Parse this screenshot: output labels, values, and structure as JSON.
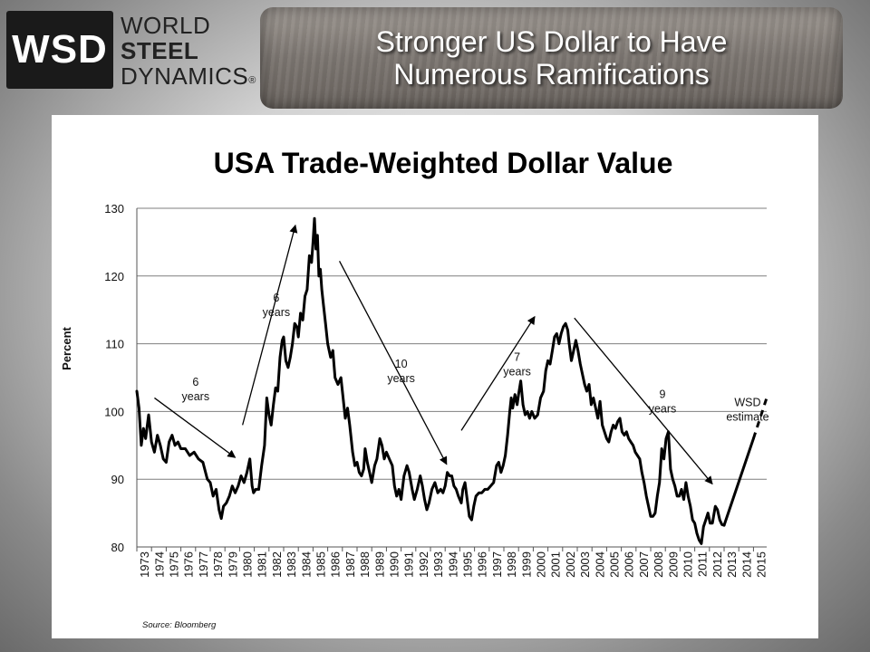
{
  "logo": {
    "abbr": "WSD",
    "line1": "WORLD",
    "line2": "STEEL",
    "line3": "DYNAMICS",
    "registered": "®"
  },
  "banner": {
    "line1": "Stronger US Dollar to Have",
    "line2": "Numerous Ramifications"
  },
  "chart_data": {
    "type": "line",
    "title": "USA Trade-Weighted Dollar Value",
    "ylabel": "Percent",
    "xlabel": "",
    "source": "Source:  Bloomberg",
    "ylim": [
      80,
      130
    ],
    "yticks": [
      80,
      90,
      100,
      110,
      120,
      130
    ],
    "xlim": [
      1973,
      2015.9
    ],
    "xticks": [
      "1973",
      "1974",
      "1975",
      "1976",
      "1977",
      "1978",
      "1979",
      "1980",
      "1981",
      "1982",
      "1983",
      "1984",
      "1985",
      "1986",
      "1987",
      "1988",
      "1989",
      "1990",
      "1991",
      "1992",
      "1993",
      "1994",
      "1995",
      "1996",
      "1997",
      "1998",
      "1999",
      "2000",
      "2001",
      "2002",
      "2003",
      "2004",
      "2005",
      "2006",
      "2007",
      "2008",
      "2009",
      "2010",
      "2011",
      "2012",
      "2013",
      "2014",
      "2015"
    ],
    "grid": "horizontal",
    "series": [
      {
        "values": [
          [
            1973.0,
            103.0
          ],
          [
            1973.15,
            100.5
          ],
          [
            1973.3,
            95.0
          ],
          [
            1973.45,
            97.5
          ],
          [
            1973.6,
            96.0
          ],
          [
            1973.8,
            99.5
          ],
          [
            1974.0,
            95.5
          ],
          [
            1974.2,
            94.0
          ],
          [
            1974.4,
            96.5
          ],
          [
            1974.6,
            95.0
          ],
          [
            1974.8,
            93.0
          ],
          [
            1975.0,
            92.5
          ],
          [
            1975.2,
            95.5
          ],
          [
            1975.4,
            96.5
          ],
          [
            1975.6,
            95.0
          ],
          [
            1975.8,
            95.5
          ],
          [
            1976.0,
            94.5
          ],
          [
            1976.3,
            94.5
          ],
          [
            1976.6,
            93.5
          ],
          [
            1976.9,
            94.0
          ],
          [
            1977.2,
            93.0
          ],
          [
            1977.5,
            92.5
          ],
          [
            1977.8,
            90.0
          ],
          [
            1978.0,
            89.5
          ],
          [
            1978.2,
            87.5
          ],
          [
            1978.4,
            88.5
          ],
          [
            1978.6,
            85.5
          ],
          [
            1978.75,
            84.2
          ],
          [
            1978.9,
            86.0
          ],
          [
            1979.1,
            86.5
          ],
          [
            1979.3,
            87.5
          ],
          [
            1979.5,
            89.0
          ],
          [
            1979.7,
            88.0
          ],
          [
            1979.9,
            89.0
          ],
          [
            1980.1,
            90.5
          ],
          [
            1980.3,
            89.5
          ],
          [
            1980.5,
            91.0
          ],
          [
            1980.7,
            93.0
          ],
          [
            1980.85,
            89.0
          ],
          [
            1980.95,
            88.0
          ],
          [
            1981.1,
            88.5
          ],
          [
            1981.3,
            88.5
          ],
          [
            1981.5,
            92.0
          ],
          [
            1981.7,
            95.0
          ],
          [
            1981.85,
            102.0
          ],
          [
            1982.0,
            99.5
          ],
          [
            1982.15,
            98.0
          ],
          [
            1982.3,
            101.0
          ],
          [
            1982.45,
            103.5
          ],
          [
            1982.6,
            103.0
          ],
          [
            1982.75,
            108.0
          ],
          [
            1982.9,
            110.5
          ],
          [
            1983.0,
            111.0
          ],
          [
            1983.15,
            107.5
          ],
          [
            1983.3,
            106.5
          ],
          [
            1983.45,
            108.0
          ],
          [
            1983.6,
            110.0
          ],
          [
            1983.75,
            113.0
          ],
          [
            1983.9,
            112.5
          ],
          [
            1984.0,
            111.0
          ],
          [
            1984.15,
            114.5
          ],
          [
            1984.3,
            113.5
          ],
          [
            1984.45,
            117.0
          ],
          [
            1984.6,
            118.0
          ],
          [
            1984.75,
            123.0
          ],
          [
            1984.9,
            122.0
          ],
          [
            1985.0,
            125.0
          ],
          [
            1985.1,
            128.5
          ],
          [
            1985.2,
            124.0
          ],
          [
            1985.3,
            126.0
          ],
          [
            1985.4,
            120.0
          ],
          [
            1985.5,
            121.0
          ],
          [
            1985.6,
            118.0
          ],
          [
            1985.7,
            116.0
          ],
          [
            1985.85,
            113.0
          ],
          [
            1986.0,
            110.0
          ],
          [
            1986.2,
            108.0
          ],
          [
            1986.35,
            109.0
          ],
          [
            1986.5,
            105.0
          ],
          [
            1986.7,
            104.0
          ],
          [
            1986.9,
            105.0
          ],
          [
            1987.0,
            103.0
          ],
          [
            1987.2,
            99.0
          ],
          [
            1987.35,
            100.5
          ],
          [
            1987.5,
            98.0
          ],
          [
            1987.7,
            94.0
          ],
          [
            1987.85,
            92.0
          ],
          [
            1988.0,
            92.5
          ],
          [
            1988.15,
            91.0
          ],
          [
            1988.3,
            90.5
          ],
          [
            1988.45,
            91.5
          ],
          [
            1988.55,
            94.5
          ],
          [
            1988.7,
            92.5
          ],
          [
            1988.85,
            91.0
          ],
          [
            1989.0,
            89.5
          ],
          [
            1989.2,
            92.0
          ],
          [
            1989.35,
            93.0
          ],
          [
            1989.55,
            96.0
          ],
          [
            1989.7,
            95.0
          ],
          [
            1989.85,
            93.0
          ],
          [
            1990.0,
            94.0
          ],
          [
            1990.2,
            93.0
          ],
          [
            1990.4,
            92.0
          ],
          [
            1990.55,
            89.0
          ],
          [
            1990.7,
            87.5
          ],
          [
            1990.85,
            88.5
          ],
          [
            1991.0,
            87.0
          ],
          [
            1991.2,
            90.5
          ],
          [
            1991.4,
            92.0
          ],
          [
            1991.55,
            91.0
          ],
          [
            1991.75,
            88.5
          ],
          [
            1991.9,
            87.0
          ],
          [
            1992.1,
            88.5
          ],
          [
            1992.3,
            90.5
          ],
          [
            1992.45,
            89.0
          ],
          [
            1992.6,
            87.0
          ],
          [
            1992.75,
            85.5
          ],
          [
            1992.9,
            86.5
          ],
          [
            1993.1,
            88.5
          ],
          [
            1993.3,
            89.5
          ],
          [
            1993.5,
            88.0
          ],
          [
            1993.7,
            88.5
          ],
          [
            1993.85,
            88.0
          ],
          [
            1994.0,
            89.0
          ],
          [
            1994.15,
            91.0
          ],
          [
            1994.3,
            90.5
          ],
          [
            1994.45,
            90.5
          ],
          [
            1994.6,
            89.0
          ],
          [
            1994.75,
            88.5
          ],
          [
            1994.9,
            87.5
          ],
          [
            1995.1,
            86.5
          ],
          [
            1995.2,
            88.5
          ],
          [
            1995.35,
            89.5
          ],
          [
            1995.5,
            87.0
          ],
          [
            1995.65,
            84.5
          ],
          [
            1995.8,
            84.0
          ],
          [
            1995.95,
            86.0
          ],
          [
            1996.1,
            87.5
          ],
          [
            1996.3,
            88.0
          ],
          [
            1996.5,
            88.0
          ],
          [
            1996.7,
            88.5
          ],
          [
            1996.9,
            88.5
          ],
          [
            1997.1,
            89.0
          ],
          [
            1997.3,
            89.5
          ],
          [
            1997.5,
            92.0
          ],
          [
            1997.65,
            92.5
          ],
          [
            1997.8,
            91.0
          ],
          [
            1997.95,
            92.0
          ],
          [
            1998.1,
            93.5
          ],
          [
            1998.25,
            96.5
          ],
          [
            1998.4,
            100.0
          ],
          [
            1998.5,
            102.0
          ],
          [
            1998.6,
            100.5
          ],
          [
            1998.75,
            102.5
          ],
          [
            1998.9,
            101.0
          ],
          [
            1999.0,
            102.5
          ],
          [
            1999.15,
            104.5
          ],
          [
            1999.3,
            101.0
          ],
          [
            1999.45,
            99.5
          ],
          [
            1999.6,
            100.0
          ],
          [
            1999.75,
            99.0
          ],
          [
            1999.9,
            100.0
          ],
          [
            2000.1,
            99.0
          ],
          [
            2000.3,
            99.5
          ],
          [
            2000.5,
            102.0
          ],
          [
            2000.7,
            103.0
          ],
          [
            2000.85,
            106.0
          ],
          [
            2001.0,
            107.5
          ],
          [
            2001.15,
            107.0
          ],
          [
            2001.3,
            109.0
          ],
          [
            2001.45,
            111.0
          ],
          [
            2001.6,
            111.5
          ],
          [
            2001.75,
            110.0
          ],
          [
            2001.9,
            111.5
          ],
          [
            2002.05,
            112.5
          ],
          [
            2002.2,
            113.0
          ],
          [
            2002.35,
            112.0
          ],
          [
            2002.45,
            110.0
          ],
          [
            2002.6,
            107.5
          ],
          [
            2002.75,
            109.0
          ],
          [
            2002.9,
            110.5
          ],
          [
            2003.05,
            109.0
          ],
          [
            2003.2,
            107.0
          ],
          [
            2003.35,
            105.5
          ],
          [
            2003.5,
            104.0
          ],
          [
            2003.65,
            103.0
          ],
          [
            2003.8,
            104.0
          ],
          [
            2003.95,
            101.0
          ],
          [
            2004.1,
            102.0
          ],
          [
            2004.25,
            100.5
          ],
          [
            2004.4,
            99.0
          ],
          [
            2004.55,
            101.5
          ],
          [
            2004.7,
            98.0
          ],
          [
            2004.85,
            97.0
          ],
          [
            2005.0,
            96.0
          ],
          [
            2005.15,
            95.5
          ],
          [
            2005.3,
            97.0
          ],
          [
            2005.45,
            98.0
          ],
          [
            2005.6,
            97.5
          ],
          [
            2005.75,
            98.5
          ],
          [
            2005.9,
            99.0
          ],
          [
            2006.05,
            97.0
          ],
          [
            2006.2,
            96.5
          ],
          [
            2006.35,
            97.0
          ],
          [
            2006.5,
            96.0
          ],
          [
            2006.65,
            95.5
          ],
          [
            2006.8,
            95.0
          ],
          [
            2006.95,
            94.0
          ],
          [
            2007.1,
            93.5
          ],
          [
            2007.25,
            93.0
          ],
          [
            2007.4,
            91.0
          ],
          [
            2007.55,
            89.5
          ],
          [
            2007.7,
            87.5
          ],
          [
            2007.85,
            86.0
          ],
          [
            2008.0,
            84.5
          ],
          [
            2008.15,
            84.5
          ],
          [
            2008.3,
            85.0
          ],
          [
            2008.45,
            87.5
          ],
          [
            2008.6,
            89.5
          ],
          [
            2008.75,
            94.5
          ],
          [
            2008.9,
            93.0
          ],
          [
            2009.05,
            96.0
          ],
          [
            2009.2,
            97.0
          ],
          [
            2009.35,
            91.5
          ],
          [
            2009.5,
            90.0
          ],
          [
            2009.65,
            89.0
          ],
          [
            2009.8,
            87.5
          ],
          [
            2009.95,
            87.5
          ],
          [
            2010.1,
            88.5
          ],
          [
            2010.25,
            87.0
          ],
          [
            2010.4,
            89.5
          ],
          [
            2010.55,
            87.5
          ],
          [
            2010.7,
            86.0
          ],
          [
            2010.85,
            84.0
          ],
          [
            2011.0,
            83.5
          ],
          [
            2011.15,
            82.0
          ],
          [
            2011.3,
            81.0
          ],
          [
            2011.45,
            80.5
          ],
          [
            2011.6,
            83.0
          ],
          [
            2011.75,
            84.0
          ],
          [
            2011.9,
            85.0
          ],
          [
            2012.05,
            83.5
          ],
          [
            2012.2,
            83.5
          ],
          [
            2012.4,
            86.0
          ],
          [
            2012.55,
            85.5
          ],
          [
            2012.7,
            84.0
          ],
          [
            2012.85,
            83.3
          ],
          [
            2013.0,
            83.2
          ]
        ]
      },
      {
        "values": [
          [
            2013.0,
            83.2
          ],
          [
            2015.0,
            96.0
          ]
        ]
      },
      {
        "values": [
          [
            2015.0,
            96.0
          ],
          [
            2015.9,
            102.0
          ]
        ]
      }
    ],
    "annotations": [
      {
        "lines": [
          "6",
          "years"
        ],
        "x": 1977.0,
        "y": 103.8
      },
      {
        "lines": [
          "6",
          "years"
        ],
        "x": 1982.5,
        "y": 116.2
      },
      {
        "lines": [
          "10",
          "years"
        ],
        "x": 1991.0,
        "y": 106.5
      },
      {
        "lines": [
          "7",
          "years"
        ],
        "x": 1998.9,
        "y": 107.5
      },
      {
        "lines": [
          "9",
          "years"
        ],
        "x": 2008.8,
        "y": 102.0
      },
      {
        "lines": [
          "WSD",
          "estimate"
        ],
        "x": 2014.6,
        "y": 100.8
      }
    ],
    "arrows": [
      {
        "from": [
          1974.2,
          102.0
        ],
        "to": [
          1979.7,
          93.2
        ]
      },
      {
        "from": [
          1980.2,
          98.0
        ],
        "to": [
          1983.8,
          127.5
        ]
      },
      {
        "from": [
          1986.8,
          122.2
        ],
        "to": [
          1994.1,
          92.2
        ]
      },
      {
        "from": [
          1995.1,
          97.2
        ],
        "to": [
          2000.1,
          114.0
        ]
      },
      {
        "from": [
          2002.8,
          113.8
        ],
        "to": [
          2012.2,
          89.3
        ]
      }
    ]
  }
}
